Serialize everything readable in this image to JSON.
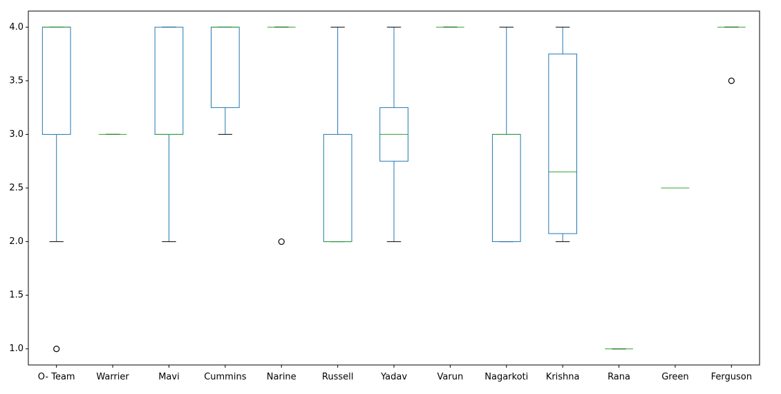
{
  "chart_data": {
    "type": "box",
    "title": "",
    "xlabel": "",
    "ylabel": "",
    "ylim": [
      0.85,
      4.15
    ],
    "yticks": [
      1.0,
      1.5,
      2.0,
      2.5,
      3.0,
      3.5,
      4.0
    ],
    "ytick_labels": [
      "1.0",
      "1.5",
      "2.0",
      "2.5",
      "3.0",
      "3.5",
      "4.0"
    ],
    "grid": false,
    "colors": {
      "box": "#1f77b4",
      "median": "#2ca02c",
      "cap": "#000000",
      "flier": "#000000"
    },
    "categories": [
      "O- Team",
      "Warrier",
      "Mavi",
      "Cummins",
      "Narine",
      "Russell",
      "Yadav",
      "Varun",
      "Nagarkoti",
      "Krishna",
      "Rana",
      "Green",
      "Ferguson"
    ],
    "boxes": [
      {
        "label": "O- Team",
        "whislo": 2.0,
        "q1": 3.0,
        "med": 4.0,
        "q3": 4.0,
        "whishi": 4.0,
        "fliers": [
          1.0
        ]
      },
      {
        "label": "Warrier",
        "whislo": 3.0,
        "q1": 3.0,
        "med": 3.0,
        "q3": 3.0,
        "whishi": 3.0,
        "fliers": []
      },
      {
        "label": "Mavi",
        "whislo": 2.0,
        "q1": 3.0,
        "med": 3.0,
        "q3": 4.0,
        "whishi": 4.0,
        "fliers": []
      },
      {
        "label": "Cummins",
        "whislo": 3.0,
        "q1": 3.25,
        "med": 4.0,
        "q3": 4.0,
        "whishi": 4.0,
        "fliers": []
      },
      {
        "label": "Narine",
        "whislo": 4.0,
        "q1": 4.0,
        "med": 4.0,
        "q3": 4.0,
        "whishi": 4.0,
        "fliers": [
          2.0
        ]
      },
      {
        "label": "Russell",
        "whislo": 2.0,
        "q1": 2.0,
        "med": 2.0,
        "q3": 3.0,
        "whishi": 4.0,
        "fliers": []
      },
      {
        "label": "Yadav",
        "whislo": 2.0,
        "q1": 2.75,
        "med": 3.0,
        "q3": 3.25,
        "whishi": 4.0,
        "fliers": []
      },
      {
        "label": "Varun",
        "whislo": 4.0,
        "q1": 4.0,
        "med": 4.0,
        "q3": 4.0,
        "whishi": 4.0,
        "fliers": []
      },
      {
        "label": "Nagarkoti",
        "whislo": 2.0,
        "q1": 2.0,
        "med": 3.0,
        "q3": 3.0,
        "whishi": 4.0,
        "fliers": []
      },
      {
        "label": "Krishna",
        "whislo": 2.0,
        "q1": 2.075,
        "med": 2.65,
        "q3": 3.75,
        "whishi": 4.0,
        "fliers": []
      },
      {
        "label": "Rana",
        "whislo": 1.0,
        "q1": 1.0,
        "med": 1.0,
        "q3": 1.0,
        "whishi": 1.0,
        "fliers": []
      },
      {
        "label": "Green",
        "whislo": 2.5,
        "q1": 2.5,
        "med": 2.5,
        "q3": 2.5,
        "whishi": 2.5,
        "fliers": []
      },
      {
        "label": "Ferguson",
        "whislo": 4.0,
        "q1": 4.0,
        "med": 4.0,
        "q3": 4.0,
        "whishi": 4.0,
        "fliers": [
          3.5
        ]
      }
    ]
  }
}
